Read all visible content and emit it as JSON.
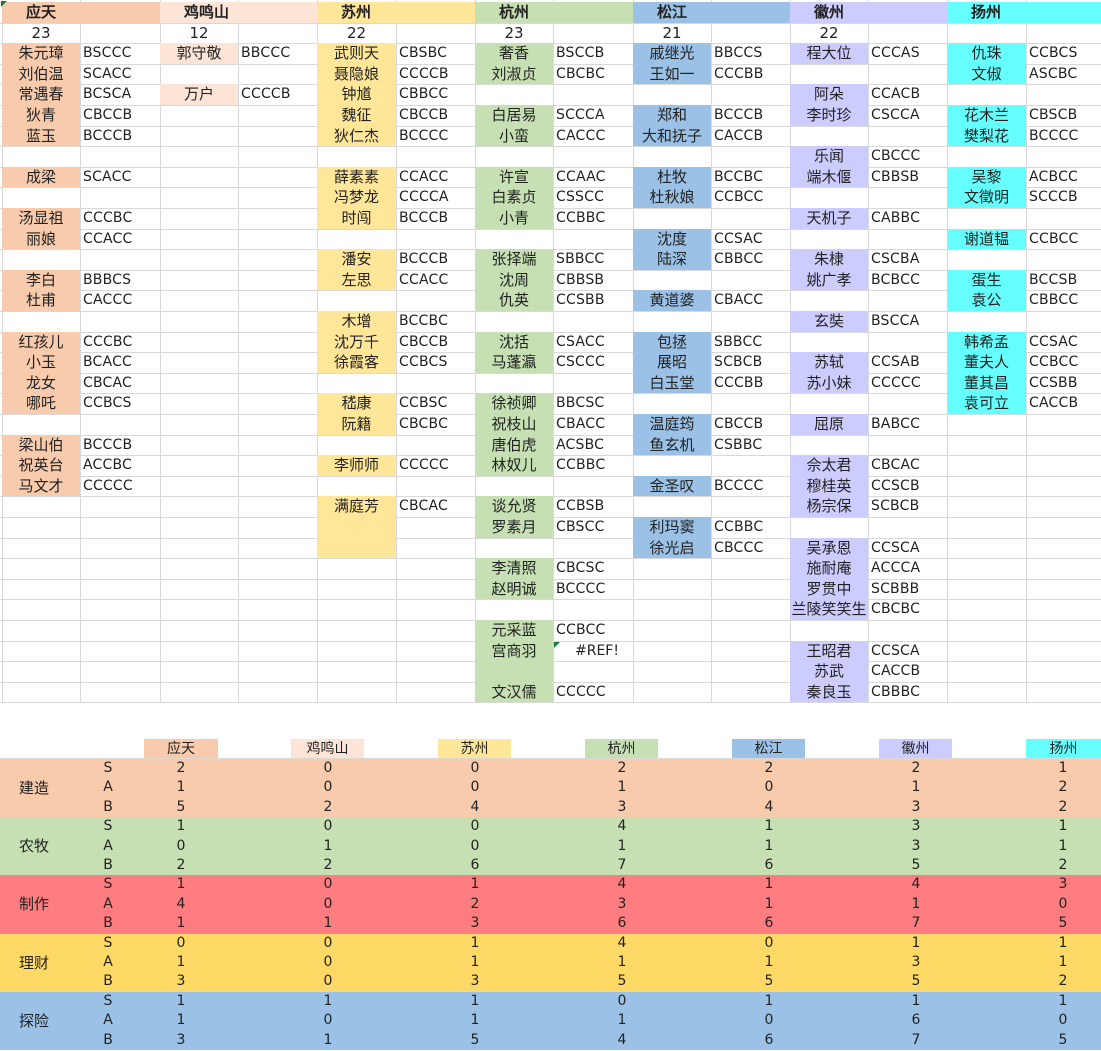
{
  "cities": [
    {
      "name": "应天",
      "count": "23",
      "color": "#f8cbad",
      "stat_color": "#f8cbad"
    },
    {
      "name": "鸡鸣山",
      "count": "12",
      "color": "#fce4d6",
      "stat_color": "#fce4d6"
    },
    {
      "name": "苏州",
      "count": "22",
      "color": "#ffe699",
      "stat_color": "#ffe699"
    },
    {
      "name": "杭州",
      "count": "23",
      "color": "#c6e0b4",
      "stat_color": "#c6e0b4"
    },
    {
      "name": "松江",
      "count": "21",
      "color": "#9bc2e6",
      "stat_color": "#9bc2e6"
    },
    {
      "name": "徽州",
      "count": "22",
      "color": "#ccccff",
      "stat_color": "#ccccff"
    },
    {
      "name": "扬州",
      "count": "",
      "color": "#66ffff",
      "stat_color": "#66ffff"
    }
  ],
  "roster": {
    "ytian": [
      {
        "row": 0,
        "name": "朱元璋",
        "code": "BSCCC"
      },
      {
        "row": 1,
        "name": "刘伯温",
        "code": "SCACC"
      },
      {
        "row": 2,
        "name": "常遇春",
        "code": "BCSCA"
      },
      {
        "row": 3,
        "name": "狄青",
        "code": "CBCCB"
      },
      {
        "row": 4,
        "name": "蓝玉",
        "code": "BCCCB"
      },
      {
        "row": 6,
        "name": "成梁",
        "code": "SCACC"
      },
      {
        "row": 8,
        "name": "汤显祖",
        "code": "CCCBC"
      },
      {
        "row": 9,
        "name": "丽娘",
        "code": "CCACC"
      },
      {
        "row": 11,
        "name": "李白",
        "code": "BBBCS"
      },
      {
        "row": 12,
        "name": "杜甫",
        "code": "CACCC"
      },
      {
        "row": 14,
        "name": "红孩儿",
        "code": "CCCBC"
      },
      {
        "row": 15,
        "name": "小玉",
        "code": "BCACC"
      },
      {
        "row": 16,
        "name": "龙女",
        "code": "CBCAC"
      },
      {
        "row": 17,
        "name": "哪吒",
        "code": "CCBCS"
      },
      {
        "row": 19,
        "name": "梁山伯",
        "code": "BCCCB"
      },
      {
        "row": 20,
        "name": "祝英台",
        "code": "ACCBC"
      },
      {
        "row": 21,
        "name": "马文才",
        "code": "CCCCC"
      }
    ],
    "jmshan": [
      {
        "row": 0,
        "name": "郭守敬",
        "code": "BBCCC"
      },
      {
        "row": 2,
        "name": "万户",
        "code": "CCCCB"
      }
    ],
    "suzhou": [
      {
        "row": 0,
        "name": "武则天",
        "code": "CBSBC"
      },
      {
        "row": 1,
        "name": "聂隐娘",
        "code": "CCCCB"
      },
      {
        "row": 2,
        "name": "钟馗",
        "code": "CBBCC"
      },
      {
        "row": 3,
        "name": "魏征",
        "code": "CBCCB"
      },
      {
        "row": 4,
        "name": "狄仁杰",
        "code": "BCCCC"
      },
      {
        "row": 6,
        "name": "薛素素",
        "code": "CCACC"
      },
      {
        "row": 7,
        "name": "冯梦龙",
        "code": "CCCCA"
      },
      {
        "row": 8,
        "name": "时闯",
        "code": "BCCCB"
      },
      {
        "row": 10,
        "name": "潘安",
        "code": "BCCCB"
      },
      {
        "row": 11,
        "name": "左思",
        "code": "CCACC"
      },
      {
        "row": 13,
        "name": "木增",
        "code": "BCCBC"
      },
      {
        "row": 14,
        "name": "沈万千",
        "code": "CBCCB"
      },
      {
        "row": 15,
        "name": "徐霞客",
        "code": "CCBCS"
      },
      {
        "row": 17,
        "name": "嵇康",
        "code": "CCBSC"
      },
      {
        "row": 18,
        "name": "阮籍",
        "code": "CBCBC"
      },
      {
        "row": 20,
        "name": "李师师",
        "code": "CCCCC"
      },
      {
        "row": 22,
        "name": "满庭芳",
        "code": "CBCAC"
      }
    ],
    "hangzhou": [
      {
        "row": 0,
        "name": "奢香",
        "code": "BSCCB"
      },
      {
        "row": 1,
        "name": "刘淑贞",
        "code": "CBCBC"
      },
      {
        "row": 3,
        "name": "白居易",
        "code": "SCCCA"
      },
      {
        "row": 4,
        "name": "小蛮",
        "code": "CACCC"
      },
      {
        "row": 6,
        "name": "许宣",
        "code": "CCAAC"
      },
      {
        "row": 7,
        "name": "白素贞",
        "code": "CSSCC"
      },
      {
        "row": 8,
        "name": "小青",
        "code": "CCBBC"
      },
      {
        "row": 10,
        "name": "张择端",
        "code": "SBBCC"
      },
      {
        "row": 11,
        "name": "沈周",
        "code": "CBBSB"
      },
      {
        "row": 12,
        "name": "仇英",
        "code": "CCSBB"
      },
      {
        "row": 14,
        "name": "沈括",
        "code": "CSACC"
      },
      {
        "row": 15,
        "name": "马蓬瀛",
        "code": "CSCCC"
      },
      {
        "row": 17,
        "name": "徐祯卿",
        "code": "BBCSC"
      },
      {
        "row": 18,
        "name": "祝枝山",
        "code": "CBACC"
      },
      {
        "row": 19,
        "name": "唐伯虎",
        "code": "ACSBC"
      },
      {
        "row": 20,
        "name": "林奴儿",
        "code": "CCBBC"
      },
      {
        "row": 22,
        "name": "谈允贤",
        "code": "CCBSB"
      },
      {
        "row": 23,
        "name": "罗素月",
        "code": "CBSCC"
      },
      {
        "row": 25,
        "name": "李清照",
        "code": "CBCSC"
      },
      {
        "row": 26,
        "name": "赵明诚",
        "code": "BCCCC"
      },
      {
        "row": 28,
        "name": "元采蓝",
        "code": "CCBCC"
      },
      {
        "row": 29,
        "name": "宫商羽",
        "code": "#REF!"
      },
      {
        "row": 31,
        "name": "文汉儒",
        "code": "CCCCC"
      }
    ],
    "songjiang": [
      {
        "row": 0,
        "name": "戚继光",
        "code": "BBCCS"
      },
      {
        "row": 1,
        "name": "王如一",
        "code": "CCCBB"
      },
      {
        "row": 3,
        "name": "郑和",
        "code": "BCCCB"
      },
      {
        "row": 4,
        "name": "大和抚子",
        "code": "CACCB"
      },
      {
        "row": 6,
        "name": "杜牧",
        "code": "BCCBC"
      },
      {
        "row": 7,
        "name": "杜秋娘",
        "code": "CCBCC"
      },
      {
        "row": 9,
        "name": "沈度",
        "code": "CCSAC"
      },
      {
        "row": 10,
        "name": "陆深",
        "code": "CBBCC"
      },
      {
        "row": 12,
        "name": "黄道婆",
        "code": "CBACC"
      },
      {
        "row": 14,
        "name": "包拯",
        "code": "SBBCC"
      },
      {
        "row": 15,
        "name": "展昭",
        "code": "SCBCB"
      },
      {
        "row": 16,
        "name": "白玉堂",
        "code": "CCCBB"
      },
      {
        "row": 18,
        "name": "温庭筠",
        "code": "CBCCB"
      },
      {
        "row": 19,
        "name": "鱼玄机",
        "code": "CSBBC"
      },
      {
        "row": 21,
        "name": "金圣叹",
        "code": "BCCCC"
      },
      {
        "row": 23,
        "name": "利玛窦",
        "code": "CCBBC"
      },
      {
        "row": 24,
        "name": "徐光启",
        "code": "CBCCC"
      }
    ],
    "huizhou": [
      {
        "row": 0,
        "name": "程大位",
        "code": "CCCAS"
      },
      {
        "row": 2,
        "name": "阿朵",
        "code": "CCACB"
      },
      {
        "row": 3,
        "name": "李时珍",
        "code": "CSCCA"
      },
      {
        "row": 5,
        "name": "乐闻",
        "code": "CBCCC"
      },
      {
        "row": 6,
        "name": "端木偃",
        "code": "CBBSB"
      },
      {
        "row": 8,
        "name": "天机子",
        "code": "CABBC"
      },
      {
        "row": 10,
        "name": "朱棣",
        "code": "CSCBA"
      },
      {
        "row": 11,
        "name": "姚广孝",
        "code": "BCBCC"
      },
      {
        "row": 13,
        "name": "玄奘",
        "code": "BSCCA"
      },
      {
        "row": 15,
        "name": "苏轼",
        "code": "CCSAB"
      },
      {
        "row": 16,
        "name": "苏小妹",
        "code": "CCCCC"
      },
      {
        "row": 18,
        "name": "屈原",
        "code": "BABCC"
      },
      {
        "row": 20,
        "name": "佘太君",
        "code": "CBCAC"
      },
      {
        "row": 21,
        "name": "穆桂英",
        "code": "CCSCB"
      },
      {
        "row": 22,
        "name": "杨宗保",
        "code": "SCBCB"
      },
      {
        "row": 24,
        "name": "吴承恩",
        "code": "CCSCA"
      },
      {
        "row": 25,
        "name": "施耐庵",
        "code": "ACCCA"
      },
      {
        "row": 26,
        "name": "罗贯中",
        "code": "SCBBB"
      },
      {
        "row": 27,
        "name": "兰陵笑笑生",
        "code": "CBCBC"
      },
      {
        "row": 29,
        "name": "王昭君",
        "code": "CCSCA"
      },
      {
        "row": 30,
        "name": "苏武",
        "code": "CACCB"
      },
      {
        "row": 31,
        "name": "秦良玉",
        "code": "CBBBC"
      }
    ],
    "yangzhou": [
      {
        "row": 0,
        "name": "仇珠",
        "code": "CCBCS"
      },
      {
        "row": 1,
        "name": "文俶",
        "code": "ASCBC"
      },
      {
        "row": 3,
        "name": "花木兰",
        "code": "CBSCB"
      },
      {
        "row": 4,
        "name": "樊梨花",
        "code": "BCCCC"
      },
      {
        "row": 6,
        "name": "吴黎",
        "code": "ACBCC"
      },
      {
        "row": 7,
        "name": "文徵明",
        "code": "SCCCB"
      },
      {
        "row": 9,
        "name": "谢道韫",
        "code": "CCBCC"
      },
      {
        "row": 11,
        "name": "蛋生",
        "code": "BCCSB"
      },
      {
        "row": 12,
        "name": "袁公",
        "code": "CBBCC"
      },
      {
        "row": 14,
        "name": "韩希孟",
        "code": "CCSAC"
      },
      {
        "row": 15,
        "name": "董夫人",
        "code": "CCBCC"
      },
      {
        "row": 16,
        "name": "董其昌",
        "code": "CCSBB"
      },
      {
        "row": 17,
        "name": "袁可立",
        "code": "CACCB"
      }
    ]
  },
  "stats": {
    "grades": [
      "S",
      "A",
      "B"
    ],
    "categories": [
      {
        "name": "建造",
        "color": "#f8cbad",
        "values": [
          [
            2,
            0,
            0,
            2,
            2,
            2,
            1
          ],
          [
            1,
            0,
            0,
            1,
            0,
            1,
            2
          ],
          [
            5,
            2,
            4,
            3,
            4,
            3,
            2
          ]
        ]
      },
      {
        "name": "农牧",
        "color": "#c6e0b4",
        "values": [
          [
            1,
            0,
            0,
            4,
            1,
            3,
            1
          ],
          [
            0,
            1,
            0,
            1,
            1,
            3,
            1
          ],
          [
            2,
            2,
            6,
            7,
            6,
            5,
            2
          ]
        ]
      },
      {
        "name": "制作",
        "color": "#ff7c80",
        "values": [
          [
            1,
            0,
            1,
            4,
            1,
            4,
            3
          ],
          [
            4,
            0,
            2,
            3,
            1,
            1,
            0
          ],
          [
            1,
            1,
            3,
            6,
            6,
            7,
            5
          ]
        ]
      },
      {
        "name": "理财",
        "color": "#ffd966",
        "values": [
          [
            0,
            0,
            1,
            4,
            0,
            1,
            1
          ],
          [
            1,
            0,
            1,
            1,
            1,
            3,
            1
          ],
          [
            3,
            0,
            3,
            5,
            5,
            5,
            2
          ]
        ]
      },
      {
        "name": "探险",
        "color": "#9bc2e6",
        "values": [
          [
            1,
            1,
            1,
            0,
            1,
            1,
            1
          ],
          [
            1,
            0,
            1,
            1,
            0,
            6,
            0
          ],
          [
            3,
            1,
            5,
            4,
            6,
            7,
            5
          ]
        ]
      }
    ]
  }
}
